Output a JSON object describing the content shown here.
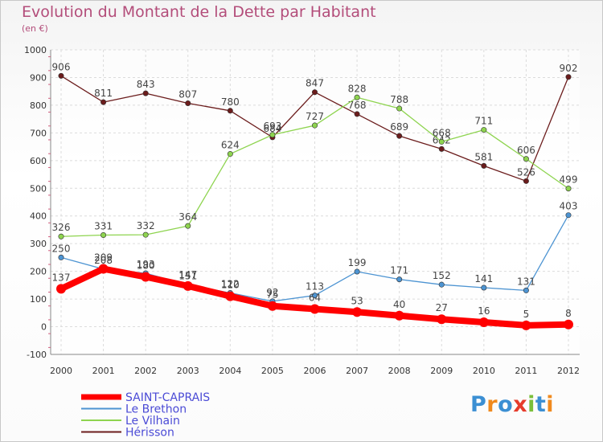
{
  "header": {
    "title": "Evolution du Montant de la Dette par Habitant",
    "subtitle": "(en €)"
  },
  "logo": {
    "text": "Proxiti"
  },
  "chart_data": {
    "type": "line",
    "title": "Evolution du Montant de la Dette par Habitant",
    "subtitle": "(en €)",
    "xlabel": "",
    "ylabel": "",
    "x": [
      "2000",
      "2001",
      "2002",
      "2003",
      "2004",
      "2005",
      "2006",
      "2007",
      "2008",
      "2009",
      "2010",
      "2011",
      "2012"
    ],
    "ylim": [
      -100,
      1000
    ],
    "yticks": [
      -100,
      0,
      100,
      200,
      300,
      400,
      500,
      600,
      700,
      800,
      900,
      1000
    ],
    "grid": true,
    "legend_position": "bottom-left",
    "series": [
      {
        "name": "SAINT-CAPRAIS",
        "color": "#ff0000",
        "emphasis": true,
        "values": [
          137,
          209,
          180,
          147,
          110,
          75,
          64,
          53,
          40,
          27,
          16,
          5,
          8
        ]
      },
      {
        "name": "Le Brethon",
        "color": "#4d94d2",
        "values": [
          250,
          208,
          193,
          151,
          122,
          92,
          113,
          199,
          171,
          152,
          141,
          131,
          403
        ]
      },
      {
        "name": "Le Vilhain",
        "color": "#8ed44f",
        "values": [
          326,
          331,
          332,
          364,
          624,
          693,
          727,
          828,
          788,
          668,
          711,
          606,
          499
        ]
      },
      {
        "name": "Hérisson",
        "color": "#6b1c1c",
        "values": [
          906,
          811,
          843,
          807,
          780,
          684,
          847,
          768,
          689,
          642,
          581,
          526,
          902
        ]
      }
    ]
  }
}
